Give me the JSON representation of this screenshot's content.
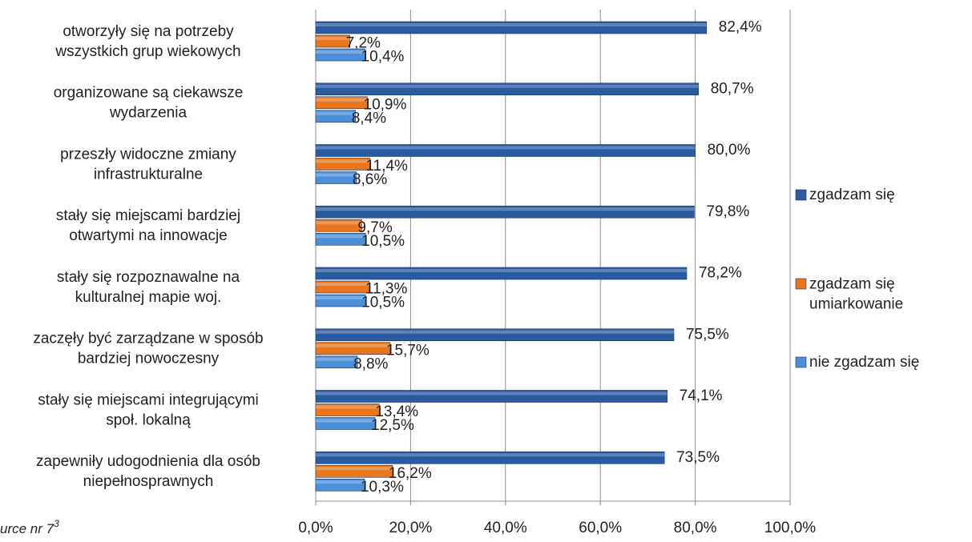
{
  "chart_data": {
    "type": "hbar",
    "categories": [
      "otworzyły się na potrzeby\nwszystkich grup wiekowych",
      "organizowane są ciekawsze\nwydarzenia",
      "przeszły widoczne zmiany\ninfrastrukturalne",
      "stały się miejscami bardziej\notwartymi na innowacje",
      "stały się rozpoznawalne na\nkulturalnej mapie woj.",
      "zaczęły być zarządzane w sposób\nbardziej nowoczesny",
      "stały się miejscami integrującymi\nspoł. lokalną",
      "zapewniły udogodnienia dla osób\nniepełnosprawnych"
    ],
    "series": [
      {
        "name": "zgadzam się",
        "color": "#2a5aa0",
        "values": [
          82.4,
          80.7,
          80.0,
          79.8,
          78.2,
          75.5,
          74.1,
          73.5
        ],
        "value_labels": [
          "82,4%",
          "80,7%",
          "80,0%",
          "79,8%",
          "78,2%",
          "75,5%",
          "74,1%",
          "73,5%"
        ]
      },
      {
        "name": "zgadzam się\numiarkowanie",
        "color": "#e8761e",
        "values": [
          7.2,
          10.9,
          11.4,
          9.7,
          11.3,
          15.7,
          13.4,
          16.2
        ],
        "value_labels": [
          "7,2%",
          "10,9%",
          "11,4%",
          "9,7%",
          "11,3%",
          "15,7%",
          "13,4%",
          "16,2%"
        ]
      },
      {
        "name": "nie zgadzam się",
        "color": "#4a8fd8",
        "values": [
          10.4,
          8.4,
          8.6,
          10.5,
          10.5,
          8.8,
          12.5,
          10.3
        ],
        "value_labels": [
          "10,4%",
          "8,4%",
          "8,6%",
          "10,5%",
          "10,5%",
          "8,8%",
          "12,5%",
          "10,3%"
        ]
      }
    ],
    "xlim": [
      0,
      100
    ],
    "xticks": [
      {
        "value": 0,
        "label": "0,0%"
      },
      {
        "value": 20,
        "label": "20,0%"
      },
      {
        "value": 40,
        "label": "40,0%"
      },
      {
        "value": 60,
        "label": "60,0%"
      },
      {
        "value": 80,
        "label": "80,0%"
      },
      {
        "value": 100,
        "label": "100,0%"
      }
    ],
    "grid": true,
    "source_note": "urce nr 7",
    "source_sup": "3"
  }
}
